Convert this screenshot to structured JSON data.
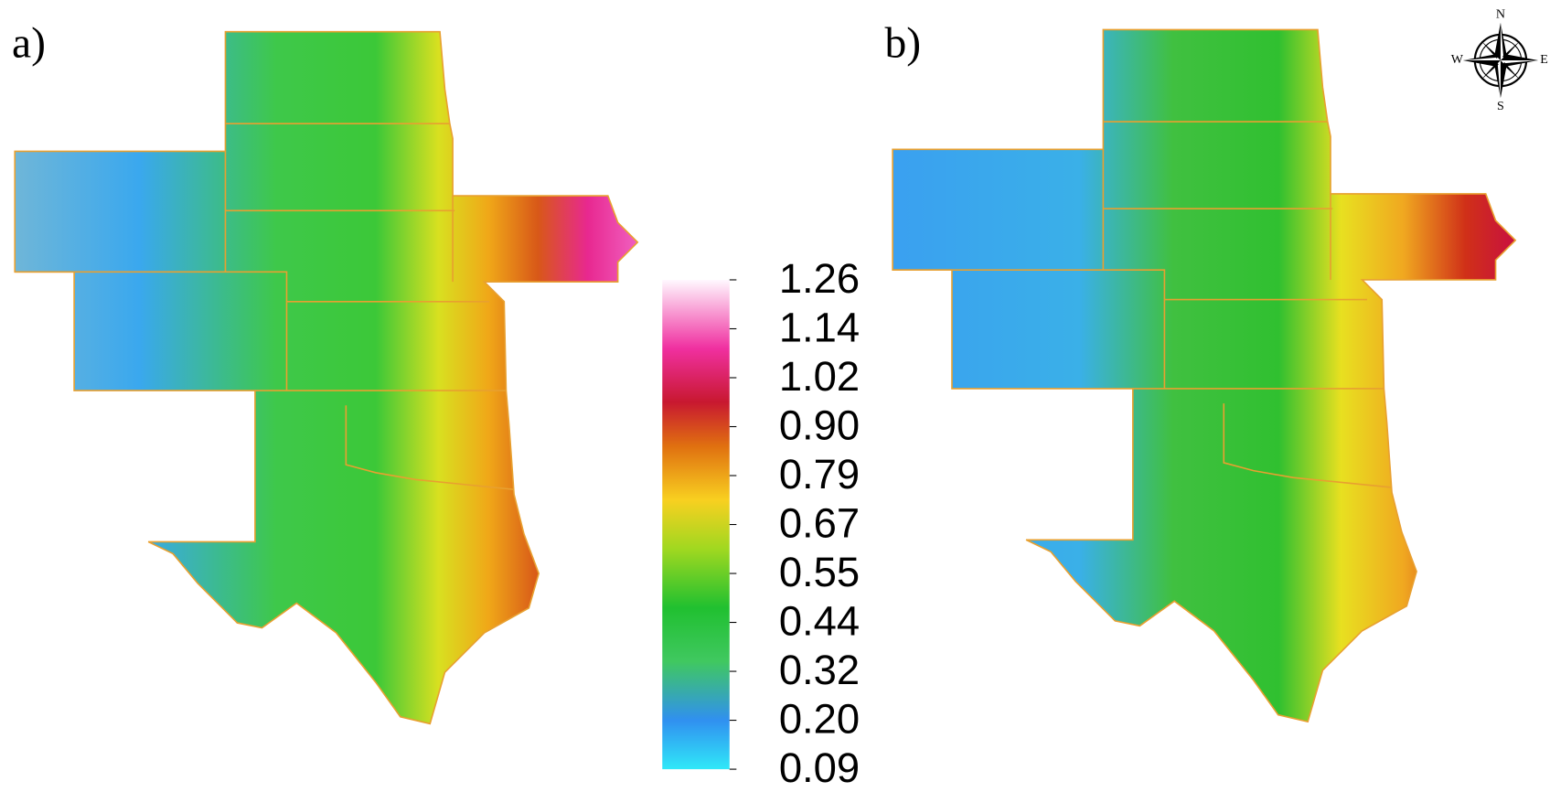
{
  "panels": [
    {
      "label": "a)"
    },
    {
      "label": "b)"
    }
  ],
  "colorbar": {
    "labels": [
      "1.26",
      "1.14",
      "1.02",
      "0.90",
      "0.79",
      "0.67",
      "0.55",
      "0.44",
      "0.32",
      "0.20",
      "0.09"
    ]
  },
  "compass": {
    "north": "N",
    "south": "S",
    "east": "E",
    "west": "W"
  }
}
